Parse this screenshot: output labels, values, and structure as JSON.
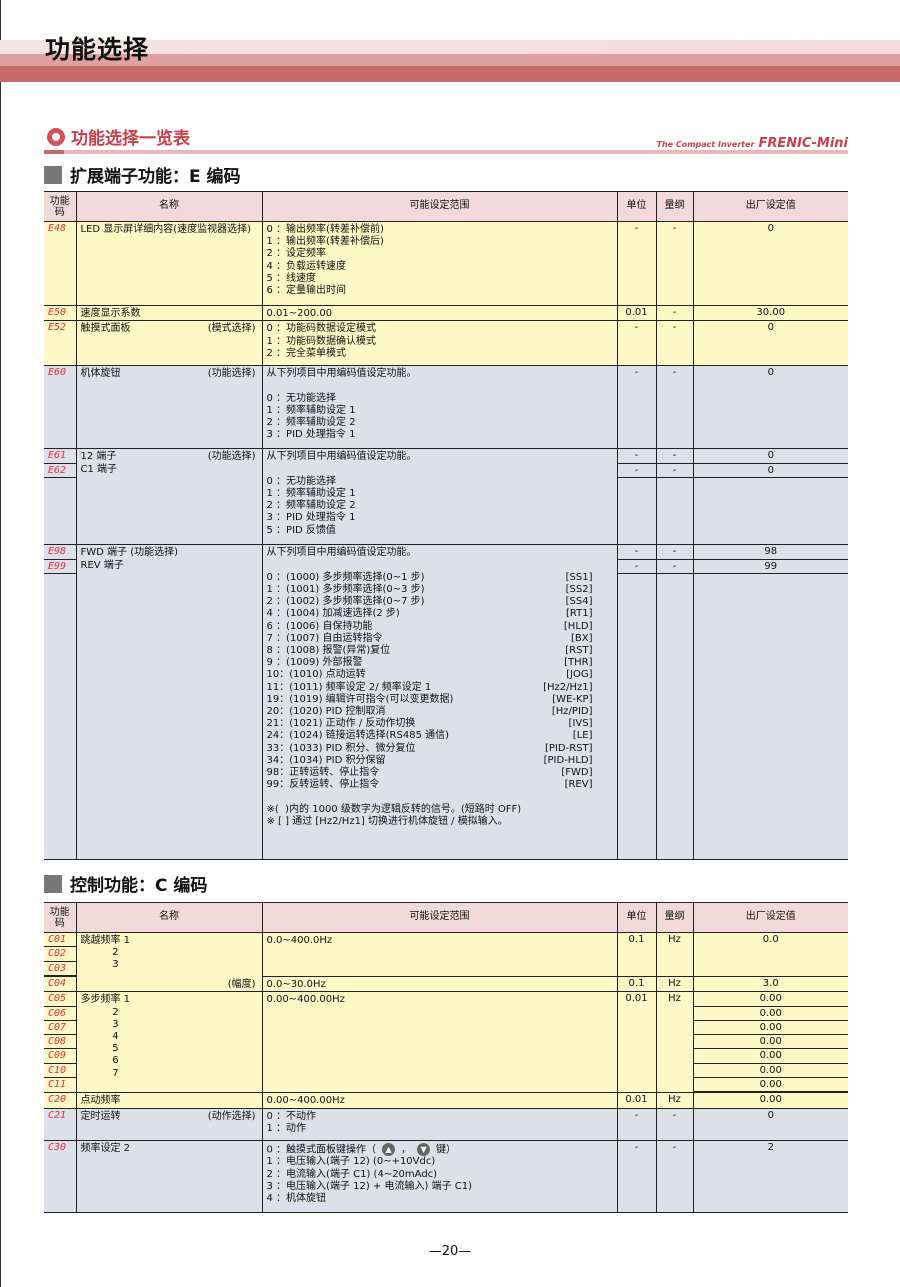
{
  "page_title": "功能选择",
  "subtitle": "功能选择一览表",
  "brand": {
    "small": "The Compact Inverter",
    "big": "FRENIC-Mini"
  },
  "columns": [
    "功能码",
    "名称",
    "可能设定范围",
    "单位",
    "量纲",
    "出厂设定值"
  ],
  "sections": [
    {
      "title": "扩展端子功能：E 编码",
      "rows": [
        {
          "bg": "y",
          "codes": [
            "E48"
          ],
          "name": [
            "LED 显示屏详细内容(速度监视器选择)"
          ],
          "note": "",
          "range": [
            "0 ：输出频率(转差补偿前)",
            "1 ：输出频率(转差补偿后)",
            "2 ：设定频率",
            "4 ：负载运转速度",
            "5 ：线速度",
            "6 ：定量输出时间"
          ],
          "units": [
            "-"
          ],
          "dims": [
            "-"
          ],
          "defaults": [
            "0"
          ]
        },
        {
          "bg": "y",
          "codes": [
            "E50"
          ],
          "name": [
            "速度显示系数"
          ],
          "note": "",
          "range": [
            "0.01~200.00"
          ],
          "units": [
            "0.01"
          ],
          "dims": [
            "-"
          ],
          "defaults": [
            "30.00"
          ]
        },
        {
          "bg": "y",
          "codes": [
            "E52"
          ],
          "name": [
            "触摸式面板"
          ],
          "note": "(模式选择)",
          "range": [
            "0 ：功能码数据设定模式",
            "1 ：功能码数据确认模式",
            "2 ：完全菜单模式"
          ],
          "units": [
            "-"
          ],
          "dims": [
            "-"
          ],
          "defaults": [
            "0"
          ]
        },
        {
          "bg": "g",
          "codes": [
            "E60"
          ],
          "name": [
            "机体旋钮"
          ],
          "note": "(功能选择)",
          "range": [
            "从下列项目中用编码值设定功能。",
            "",
            "0 ：无功能选择",
            "1 ：频率辅助设定 1",
            "2 ：频率辅助设定 2",
            "3 ：PID 处理指令 1"
          ],
          "units": [
            "-"
          ],
          "dims": [
            "-"
          ],
          "defaults": [
            "0"
          ]
        },
        {
          "bg": "g",
          "codes": [
            "E61",
            "E62"
          ],
          "name": [
            "12 端子",
            "C1 端子"
          ],
          "note": "(功能选择)",
          "range": [
            "从下列项目中用编码值设定功能。",
            "",
            "0 ：无功能选择",
            "1 ：频率辅助设定 1",
            "2 ：频率辅助设定 2",
            "3 ：PID 处理指令 1",
            "5 ：PID 反馈值"
          ],
          "units": [
            "-",
            "-"
          ],
          "dims": [
            "-",
            "-"
          ],
          "defaults": [
            "0",
            "0"
          ]
        },
        {
          "bg": "g",
          "codes": [
            "E98",
            "E99"
          ],
          "name": [
            "FWD 端子 (功能选择)",
            "REV 端子"
          ],
          "note": "",
          "range": [
            "从下列项目中用编码值设定功能。",
            "",
            {
              "text": "0 ：(1000) 多步频率选择(0~1 步)",
              "tag": "[SS1]"
            },
            {
              "text": "1 ：(1001) 多步频率选择(0~3 步)",
              "tag": "[SS2]"
            },
            {
              "text": "2 ：(1002) 多步频率选择(0~7 步)",
              "tag": "[SS4]"
            },
            {
              "text": "4 ：(1004) 加减速选择(2 步)",
              "tag": "[RT1]"
            },
            {
              "text": "6 ：(1006) 自保持功能",
              "tag": "[HLD]"
            },
            {
              "text": "7 ：(1007) 自由运转指令",
              "tag": "[BX]"
            },
            {
              "text": "8 ：(1008) 报警(异常)复位",
              "tag": "[RST]"
            },
            {
              "text": "9 ：(1009) 外部报警",
              "tag": "[THR]"
            },
            {
              "text": "10：(1010) 点动运转",
              "tag": "[JOG]"
            },
            {
              "text": "11：(1011) 频率设定 2/ 频率设定 1",
              "tag": "[Hz2/Hz1]"
            },
            {
              "text": "19：(1019) 编辑许可指令(可以变更数据)",
              "tag": "[WE-KP]"
            },
            {
              "text": "20：(1020) PID 控制取消",
              "tag": "[Hz/PID]"
            },
            {
              "text": "21：(1021) 正动作 / 反动作切换",
              "tag": "[IVS]"
            },
            {
              "text": "24：(1024) 链接运转选择(RS485 通信)",
              "tag": "[LE]"
            },
            {
              "text": "33：(1033) PID 积分、微分复位",
              "tag": "[PID-RST]"
            },
            {
              "text": "34：(1034) PID 积分保留",
              "tag": "[PID-HLD]"
            },
            {
              "text": "98：正转运转、停止指令",
              "tag": "[FWD]"
            },
            {
              "text": "99：反转运转、停止指令",
              "tag": "[REV]"
            },
            "",
            "※(  )内的 1000 级数字为逻辑反转的信号。(短路时 OFF)",
            "※ [ ] 通过 [Hz2/Hz1] 切换进行机体旋钮 / 模拟输入。"
          ],
          "units": [
            "-",
            "-"
          ],
          "dims": [
            "-",
            "-"
          ],
          "defaults": [
            "98",
            "99"
          ]
        }
      ]
    },
    {
      "title": "控制功能：C 编码",
      "rows": [
        {
          "bg": "y",
          "codes": [
            "C01",
            "C02",
            "C03"
          ],
          "name": [
            "跳越频率 1",
            "          2",
            "          3"
          ],
          "note": "",
          "range": [
            "0.0~400.0Hz"
          ],
          "units": [
            "0.1"
          ],
          "dims": [
            "Hz"
          ],
          "defaults": [
            "0.0"
          ],
          "merge_next_name": true
        },
        {
          "bg": "y",
          "codes": [
            "C04"
          ],
          "name": [
            ""
          ],
          "note": "(幅度)",
          "range": [
            "0.0~30.0Hz"
          ],
          "units": [
            "0.1"
          ],
          "dims": [
            "Hz"
          ],
          "defaults": [
            "3.0"
          ]
        },
        {
          "bg": "y",
          "codes": [
            "C05",
            "C06",
            "C07",
            "C08",
            "C09",
            "C10",
            "C11"
          ],
          "name": [
            "多步频率 1",
            "          2",
            "          3",
            "          4",
            "          5",
            "          6",
            "          7"
          ],
          "note": "",
          "range": [
            "0.00~400.00Hz"
          ],
          "units": [
            "0.01"
          ],
          "dims": [
            "Hz"
          ],
          "defaults": [
            "0.00",
            "0.00",
            "0.00",
            "0.00",
            "0.00",
            "0.00",
            "0.00"
          ]
        },
        {
          "bg": "y",
          "codes": [
            "C20"
          ],
          "name": [
            "点动频率"
          ],
          "note": "",
          "range": [
            "0.00~400.00Hz"
          ],
          "units": [
            "0.01"
          ],
          "dims": [
            "Hz"
          ],
          "defaults": [
            "0.00"
          ]
        },
        {
          "bg": "g",
          "codes": [
            "C21"
          ],
          "name": [
            "定时运转"
          ],
          "note": "(动作选择)",
          "range": [
            "0 ：不动作",
            "1 ：动作"
          ],
          "units": [
            "-"
          ],
          "dims": [
            "-"
          ],
          "defaults": [
            "0"
          ]
        },
        {
          "bg": "g",
          "codes": [
            "C30"
          ],
          "name": [
            "频率设定 2"
          ],
          "note": "",
          "range": [
            {
              "text": "0 ：触摸式面板键操作（",
              "icons": [
                "up-circle",
                "down-circle"
              ],
              "suffix": "键）"
            },
            "1 ：电压输入(端子 12) (0~+10Vdc)",
            "2 ：电流输入(端子 C1) (4~20mAdc)",
            "3 ：电压输入(端子 12) + 电流输入) 端子 C1)",
            "4 ：机体旋钮"
          ],
          "units": [
            "-"
          ],
          "dims": [
            "-"
          ],
          "defaults": [
            "2"
          ]
        }
      ]
    }
  ],
  "page_number": "—20—"
}
